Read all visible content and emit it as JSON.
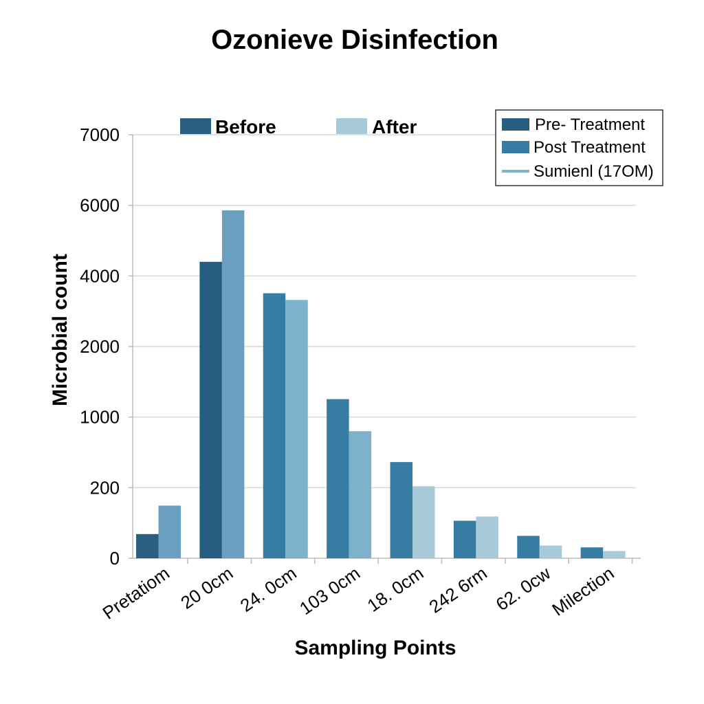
{
  "chart_data": {
    "type": "bar",
    "title": "Ozonieve Disinfection",
    "xlabel": "Sampling Points",
    "ylabel": "Microbial count",
    "categories": [
      "Pretatiom",
      "20 0cm",
      "24. 0cm",
      "103 0cm",
      "18. 0cm",
      "242 6rm",
      "62. 0cw",
      "Milection"
    ],
    "y_tick_labels": [
      "0",
      "200",
      "1000",
      "2000",
      "4000",
      "6000",
      "7000"
    ],
    "ylim": [
      0,
      7000
    ],
    "grid": true,
    "series": [
      {
        "name": "Before",
        "colors": [
          "#2a5f80",
          "#255e80",
          "#367da3",
          "#367ca3",
          "#367ca3",
          "#367ca3",
          "#367ca3",
          "#367ca3"
        ],
        "values": [
          400,
          4900,
          4380,
          2630,
          1590,
          620,
          370,
          180
        ]
      },
      {
        "name": "After",
        "colors": [
          "#6a9fc0",
          "#6a9fc0",
          "#7fb3cc",
          "#7fb3cc",
          "#a8cad8",
          "#a8cad8",
          "#a8cad8",
          "#a8cad8"
        ],
        "values": [
          870,
          5750,
          4270,
          2100,
          1190,
          690,
          210,
          120
        ]
      }
    ],
    "top_legend": [
      {
        "label": "Before",
        "color": "#2a5f80"
      },
      {
        "label": "After",
        "color": "#a8cad8"
      }
    ],
    "legend": {
      "position": "top-right",
      "entries": [
        {
          "label": "Pre- Treatment",
          "color": "#255e80",
          "marker": "box"
        },
        {
          "label": "Post Treatment",
          "color": "#367ca3",
          "marker": "box"
        },
        {
          "label": "Sumienl (17OM)",
          "color": "#7fb3cc",
          "marker": "line"
        }
      ]
    }
  }
}
